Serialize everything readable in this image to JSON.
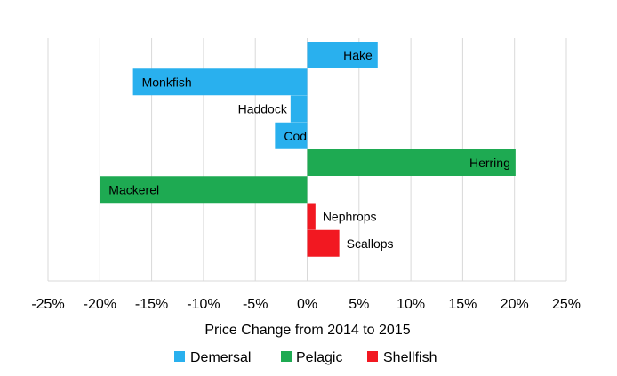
{
  "chart_data": {
    "type": "bar",
    "orientation": "horizontal",
    "xlabel": "Price Change from 2014 to 2015",
    "ylabel": "",
    "title": "",
    "xlim": [
      -0.25,
      0.25
    ],
    "x_ticks": [
      {
        "value": -0.25,
        "label": "-25%"
      },
      {
        "value": -0.2,
        "label": "-20%"
      },
      {
        "value": -0.15,
        "label": "-15%"
      },
      {
        "value": -0.1,
        "label": "-10%"
      },
      {
        "value": -0.05,
        "label": "-5%"
      },
      {
        "value": 0.0,
        "label": "0%"
      },
      {
        "value": 0.05,
        "label": "5%"
      },
      {
        "value": 0.1,
        "label": "10%"
      },
      {
        "value": 0.15,
        "label": "15%"
      },
      {
        "value": 0.2,
        "label": "20%"
      },
      {
        "value": 0.25,
        "label": "25%"
      }
    ],
    "grid": "vertical",
    "legend_position": "bottom",
    "series": [
      {
        "name": "Demersal",
        "color": "#29B0EE"
      },
      {
        "name": "Pelagic",
        "color": "#1EAA52"
      },
      {
        "name": "Shellfish",
        "color": "#F21821"
      }
    ],
    "bars": [
      {
        "label": "Hake",
        "value": 0.068,
        "series": "Demersal"
      },
      {
        "label": "Monkfish",
        "value": -0.168,
        "series": "Demersal"
      },
      {
        "label": "Haddock",
        "value": -0.016,
        "series": "Demersal"
      },
      {
        "label": "Cod",
        "value": -0.031,
        "series": "Demersal"
      },
      {
        "label": "Herring",
        "value": 0.201,
        "series": "Pelagic"
      },
      {
        "label": "Mackerel",
        "value": -0.2,
        "series": "Pelagic"
      },
      {
        "label": "Nephrops",
        "value": 0.008,
        "series": "Shellfish"
      },
      {
        "label": "Scallops",
        "value": 0.031,
        "series": "Shellfish"
      }
    ]
  }
}
